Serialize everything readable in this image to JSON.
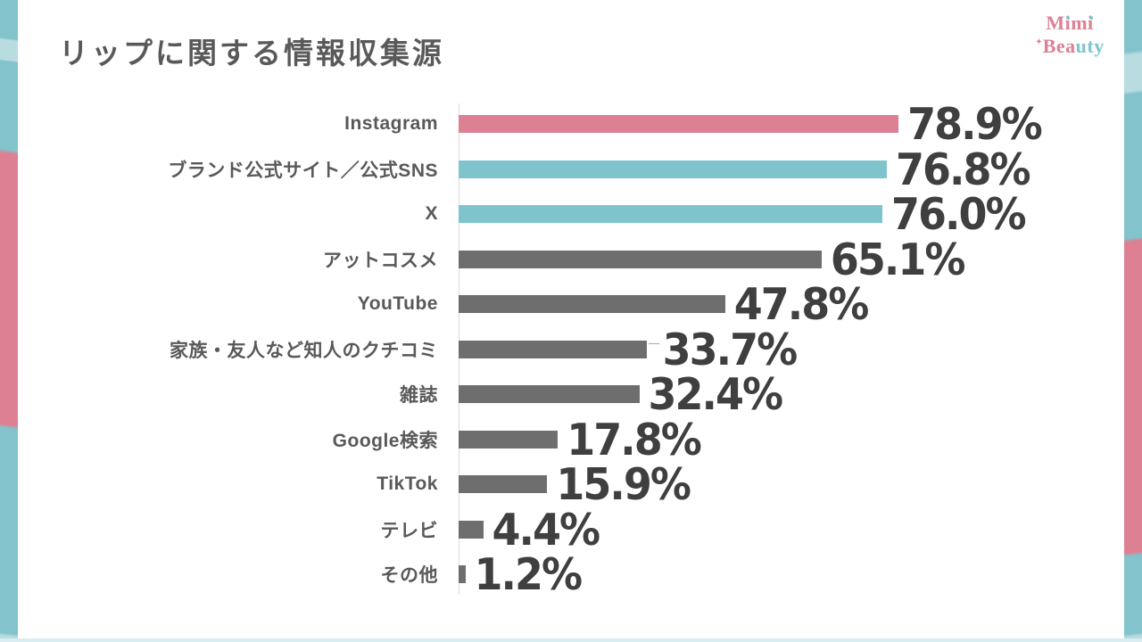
{
  "page": {
    "title": "リップに関する情報収集源"
  },
  "logo": {
    "name": "Mimi Beauty",
    "line1_segments": [
      {
        "t": "M",
        "c": "#dd8093"
      },
      {
        "t": "i",
        "c": "#dd8093",
        "dot": "#7fc4cd"
      },
      {
        "t": "m",
        "c": "#dd8093"
      },
      {
        "t": "i",
        "c": "#dd8093",
        "dot": "#7fc4cd"
      }
    ],
    "line2_segments": [
      {
        "t": "✦",
        "c": "#dd8093",
        "cls": "sparkle"
      },
      {
        "t": "Bea",
        "c": "#dd8093"
      },
      {
        "t": "uty",
        "c": "#7fc4cd"
      }
    ]
  },
  "colors": {
    "brand_pink": "#dd8093",
    "brand_teal": "#7fc4cd",
    "stripe_teal": "#82c3cc",
    "stripe_light_teal": "#b9dce1",
    "bar_gray": "#6e6e6e",
    "heading_gray": "#595959",
    "value_text": "#3f3f3f",
    "axis_line": "#d9d9d9"
  },
  "chart_data": {
    "type": "bar",
    "orientation": "horizontal",
    "title": "リップに関する情報収集源",
    "xlabel": "",
    "ylabel": "",
    "xlim": [
      0,
      100
    ],
    "grid": false,
    "legend": false,
    "value_suffix": "%",
    "rows": [
      {
        "label": "Instagram",
        "value": 78.9,
        "value_label": "78.9%",
        "color": "#dd8093"
      },
      {
        "label": "ブランド公式サイト／公式SNS",
        "value": 76.8,
        "value_label": "76.8%",
        "color": "#7fc4cd"
      },
      {
        "label": "X",
        "value": 76.0,
        "value_label": "76.0%",
        "color": "#7fc4cd"
      },
      {
        "label": "アットコスメ",
        "value": 65.1,
        "value_label": "65.1%",
        "color": "#6e6e6e"
      },
      {
        "label": "YouTube",
        "value": 47.8,
        "value_label": "47.8%",
        "color": "#6e6e6e"
      },
      {
        "label": "家族・友人など知人のクチコミ",
        "value": 33.7,
        "value_label": "33.7%",
        "color": "#6e6e6e",
        "leader_line": true
      },
      {
        "label": "雑誌",
        "value": 32.4,
        "value_label": "32.4%",
        "color": "#6e6e6e"
      },
      {
        "label": "Google検索",
        "value": 17.8,
        "value_label": "17.8%",
        "color": "#6e6e6e"
      },
      {
        "label": "TikTok",
        "value": 15.9,
        "value_label": "15.9%",
        "color": "#6e6e6e"
      },
      {
        "label": "テレビ",
        "value": 4.4,
        "value_label": "4.4%",
        "color": "#6e6e6e"
      },
      {
        "label": "その他",
        "value": 1.2,
        "value_label": "1.2%",
        "color": "#6e6e6e"
      }
    ]
  }
}
